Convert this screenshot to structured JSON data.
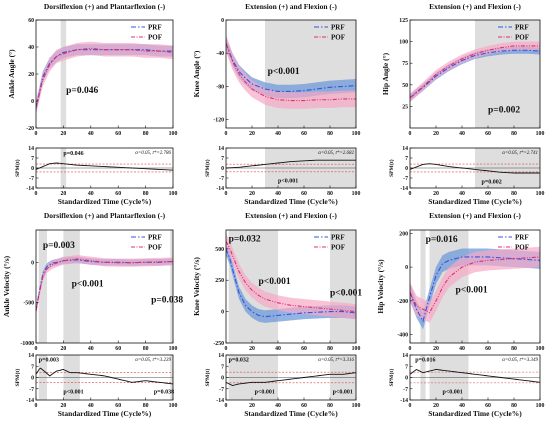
{
  "colors": {
    "prf": "#3355e0",
    "pof": "#e0306e",
    "prf_band": "#6f9ad8",
    "pof_band": "#f7a8c6",
    "highlight": "#dedede",
    "spm_threshold": "#d94848"
  },
  "chart_data": [
    {
      "id": "ankle_angle",
      "type": "line",
      "title": "Dorsiflexion (+) and Plantarflexion (-)",
      "xlabel": "",
      "ylabel": "Ankle Angle (°)",
      "xlim": [
        0,
        100
      ],
      "ylim": [
        -20,
        60
      ],
      "xticks": [
        0,
        20,
        40,
        60,
        80,
        100
      ],
      "yticks": [
        -20,
        0,
        20,
        40,
        60
      ],
      "legend": [
        "PRF",
        "POF"
      ],
      "legend_position": "top-right",
      "x": [
        0,
        5,
        10,
        15,
        20,
        30,
        40,
        50,
        60,
        70,
        80,
        90,
        100
      ],
      "series": [
        {
          "name": "PRF",
          "values": [
            -5,
            18,
            28,
            33,
            36,
            38,
            38,
            38,
            38,
            38,
            38,
            37,
            37
          ],
          "sd": 4
        },
        {
          "name": "POF",
          "values": [
            -5,
            16,
            27,
            33,
            35,
            38,
            39,
            38,
            38,
            38,
            37,
            37,
            36
          ],
          "sd": 5
        }
      ],
      "highlight_ranges": [
        [
          18,
          22
        ]
      ],
      "annotations": [
        {
          "text": "p=0.046",
          "x": 22,
          "y": 6
        }
      ]
    },
    {
      "id": "knee_angle",
      "type": "line",
      "title": "Extension (+) and Flexion (-)",
      "xlabel": "",
      "ylabel": "Knee Angle (°)",
      "xlim": [
        0,
        100
      ],
      "ylim": [
        -130,
        0
      ],
      "xticks": [
        0,
        20,
        40,
        60,
        80,
        100
      ],
      "yticks": [
        -120,
        -80,
        -40,
        0
      ],
      "legend": [
        "PRF",
        "POF"
      ],
      "legend_position": "top-right",
      "x": [
        0,
        5,
        10,
        15,
        20,
        30,
        40,
        50,
        60,
        70,
        80,
        90,
        100
      ],
      "series": [
        {
          "name": "PRF",
          "values": [
            -28,
            -48,
            -62,
            -70,
            -77,
            -83,
            -86,
            -86,
            -85,
            -83,
            -81,
            -80,
            -79
          ],
          "sd": 8
        },
        {
          "name": "POF",
          "values": [
            -28,
            -50,
            -65,
            -75,
            -83,
            -92,
            -96,
            -97,
            -97,
            -96,
            -96,
            -95,
            -95
          ],
          "sd": 10
        }
      ],
      "highlight_ranges": [
        [
          30,
          100
        ]
      ],
      "annotations": [
        {
          "text": "p<0.001",
          "x": 32,
          "y": -65
        }
      ]
    },
    {
      "id": "hip_angle",
      "type": "line",
      "title": "Extension (+) and Flexion (-)",
      "xlabel": "",
      "ylabel": "Hip Angle (°)",
      "xlim": [
        0,
        100
      ],
      "ylim": [
        0,
        125
      ],
      "xticks": [
        0,
        20,
        40,
        60,
        80,
        100
      ],
      "yticks": [
        25,
        50,
        75,
        100,
        125
      ],
      "legend": [
        "PRF",
        "POF"
      ],
      "legend_position": "top-right",
      "x": [
        0,
        10,
        20,
        30,
        40,
        50,
        60,
        70,
        80,
        90,
        100
      ],
      "series": [
        {
          "name": "PRF",
          "values": [
            35,
            47,
            60,
            70,
            78,
            84,
            87,
            89,
            90,
            90,
            89
          ],
          "sd": 4
        },
        {
          "name": "POF",
          "values": [
            35,
            48,
            62,
            72,
            80,
            86,
            90,
            93,
            95,
            95,
            95
          ],
          "sd": 5
        }
      ],
      "highlight_ranges": [
        [
          50,
          100
        ]
      ],
      "annotations": [
        {
          "text": "p=0.002",
          "x": 60,
          "y": 18
        }
      ]
    },
    {
      "id": "spm_ankle_angle",
      "type": "line",
      "xlabel": "Standardized Time (Cycle%)",
      "ylabel": "SPM{t}",
      "xlim": [
        0,
        100
      ],
      "ylim": [
        -14,
        14
      ],
      "xticks": [
        0,
        20,
        40,
        60,
        80,
        100
      ],
      "yticks": [
        -14,
        -7,
        0,
        7,
        14
      ],
      "threshold": 2.786,
      "alpha_text": "α=0.05, t*=2.786",
      "x": [
        0,
        5,
        10,
        15,
        20,
        30,
        40,
        50,
        60,
        70,
        80,
        90,
        100
      ],
      "series": [
        {
          "values": [
            -1,
            1,
            3,
            3.5,
            3,
            2,
            1.5,
            1,
            0.5,
            0,
            -0.5,
            -1,
            -1.5
          ]
        }
      ],
      "highlight_ranges": [
        [
          18,
          22
        ]
      ],
      "annotations": [
        {
          "text": "p=0.046",
          "x": 20,
          "y": 9
        }
      ]
    },
    {
      "id": "spm_knee_angle",
      "type": "line",
      "xlabel": "Standardized Time (Cycle%)",
      "ylabel": "SPM{t}",
      "xlim": [
        0,
        100
      ],
      "ylim": [
        -14,
        14
      ],
      "xticks": [
        0,
        20,
        40,
        60,
        80,
        100
      ],
      "yticks": [
        -14,
        -7,
        0,
        7,
        14
      ],
      "threshold": 2.682,
      "alpha_text": "α=0.05, t*=2.682",
      "x": [
        0,
        10,
        20,
        30,
        40,
        50,
        60,
        70,
        80,
        90,
        100
      ],
      "series": [
        {
          "values": [
            0,
            0.5,
            1.5,
            2.5,
            3.5,
            4.5,
            5,
            5.5,
            5.5,
            5.5,
            5.5
          ]
        }
      ],
      "highlight_ranges": [
        [
          30,
          100
        ]
      ],
      "annotations": [
        {
          "text": "p<0.001",
          "x": 40,
          "y": -10
        }
      ]
    },
    {
      "id": "spm_hip_angle",
      "type": "line",
      "xlabel": "Standardized Time (Cycle%)",
      "ylabel": "SPM{t}",
      "xlim": [
        0,
        100
      ],
      "ylim": [
        -14,
        14
      ],
      "xticks": [
        0,
        20,
        40,
        60,
        80,
        100
      ],
      "yticks": [
        -14,
        -7,
        0,
        7,
        14
      ],
      "threshold": 2.741,
      "alpha_text": "α=0.05, t*=2.741",
      "x": [
        0,
        10,
        15,
        20,
        30,
        40,
        50,
        60,
        70,
        80,
        90,
        100
      ],
      "series": [
        {
          "values": [
            -1,
            2.5,
            3,
            2.5,
            1,
            0,
            -1,
            -2,
            -3,
            -3.5,
            -3.5,
            -3.5
          ]
        }
      ],
      "highlight_ranges": [
        [
          50,
          100
        ]
      ],
      "annotations": [
        {
          "text": "p=0.002",
          "x": 55,
          "y": -11
        }
      ]
    },
    {
      "id": "ankle_velocity",
      "type": "line",
      "title": "Dorsiflexion (+) and Plantarflexion (-)",
      "xlabel": "",
      "ylabel": "Ankle Velocity (°/s)",
      "xlim": [
        0,
        100
      ],
      "ylim": [
        -1000,
        400
      ],
      "xticks": [
        0,
        20,
        40,
        60,
        80,
        100
      ],
      "yticks": [
        -1000,
        -500,
        0
      ],
      "legend": [
        "PRF",
        "POF"
      ],
      "legend_position": "top-right",
      "x": [
        0,
        2,
        5,
        8,
        12,
        15,
        20,
        30,
        40,
        50,
        60,
        70,
        80,
        90,
        100
      ],
      "series": [
        {
          "name": "PRF",
          "values": [
            -600,
            -400,
            -150,
            -50,
            -10,
            0,
            20,
            30,
            10,
            0,
            0,
            -5,
            0,
            0,
            10
          ],
          "sd": 40
        },
        {
          "name": "POF",
          "values": [
            -600,
            -420,
            -180,
            -80,
            -30,
            -10,
            20,
            40,
            20,
            0,
            -5,
            -5,
            0,
            5,
            10
          ],
          "sd": 50
        }
      ],
      "highlight_ranges": [
        [
          2,
          8
        ],
        [
          20,
          32
        ],
        [
          98,
          100
        ]
      ],
      "annotations": [
        {
          "text": "p=0.003",
          "x": 5,
          "y": 180
        },
        {
          "text": "p<0.001",
          "x": 26,
          "y": -300
        },
        {
          "text": "p=0.038",
          "x": 84,
          "y": -500
        }
      ]
    },
    {
      "id": "knee_velocity",
      "type": "line",
      "title": "Extension (+) and Flexion (-)",
      "xlabel": "",
      "ylabel": "Knee Velocity (°/s)",
      "xlim": [
        0,
        100
      ],
      "ylim": [
        -250,
        650
      ],
      "xticks": [
        0,
        20,
        40,
        60,
        80,
        100
      ],
      "yticks": [
        -250,
        0,
        250,
        500
      ],
      "legend": [
        "PRF",
        "POF"
      ],
      "legend_position": "top-right",
      "x": [
        0,
        3,
        6,
        10,
        15,
        20,
        25,
        30,
        40,
        50,
        60,
        70,
        80,
        90,
        100
      ],
      "series": [
        {
          "name": "PRF",
          "values": [
            500,
            420,
            300,
            150,
            50,
            0,
            -30,
            -40,
            -30,
            -20,
            -10,
            -5,
            0,
            0,
            -10
          ],
          "sd": 50
        },
        {
          "name": "POF",
          "values": [
            560,
            500,
            420,
            320,
            230,
            170,
            130,
            100,
            70,
            50,
            40,
            30,
            20,
            10,
            0
          ],
          "sd": 60
        }
      ],
      "highlight_ranges": [
        [
          2,
          40
        ],
        [
          80,
          100
        ]
      ],
      "annotations": [
        {
          "text": "p=0.032",
          "x": 2,
          "y": 560
        },
        {
          "text": "p<0.001",
          "x": 25,
          "y": 220
        },
        {
          "text": "p<0.001",
          "x": 80,
          "y": 130
        }
      ]
    },
    {
      "id": "hip_velocity",
      "type": "line",
      "title": "Extension (+) and Flexion (-)",
      "xlabel": "",
      "ylabel": "Hip Velocity (°/s)",
      "xlim": [
        0,
        100
      ],
      "ylim": [
        -450,
        220
      ],
      "xticks": [
        0,
        20,
        40,
        60,
        80,
        100
      ],
      "yticks": [
        -400,
        -200,
        0,
        200
      ],
      "legend": [
        "PRF",
        "POF"
      ],
      "legend_position": "top-right",
      "x": [
        0,
        5,
        10,
        15,
        20,
        25,
        30,
        40,
        50,
        60,
        70,
        80,
        90,
        100
      ],
      "series": [
        {
          "name": "PRF",
          "values": [
            -150,
            -250,
            -320,
            -180,
            -50,
            20,
            40,
            60,
            60,
            60,
            55,
            50,
            45,
            40
          ],
          "sd": 50
        },
        {
          "name": "POF",
          "values": [
            -150,
            -230,
            -250,
            -270,
            -200,
            -120,
            -60,
            0,
            30,
            40,
            45,
            50,
            55,
            60
          ],
          "sd": 60
        }
      ],
      "highlight_ranges": [
        [
          8,
          12
        ],
        [
          15,
          45
        ]
      ],
      "annotations": [
        {
          "text": "p=0.016",
          "x": 12,
          "y": 150
        },
        {
          "text": "p<0.001",
          "x": 35,
          "y": -150
        }
      ]
    },
    {
      "id": "spm_ankle_velocity",
      "type": "line",
      "xlabel": "Standardized Time (Cycle%)",
      "ylabel": "SPM{t}",
      "xlim": [
        0,
        100
      ],
      "ylim": [
        -14,
        14
      ],
      "xticks": [
        0,
        20,
        40,
        60,
        80,
        100
      ],
      "yticks": [
        -14,
        -7,
        0,
        7,
        14
      ],
      "threshold": 3.239,
      "alpha_text": "α=0.05, t*=3.239",
      "x": [
        0,
        3,
        6,
        10,
        15,
        20,
        25,
        30,
        40,
        50,
        60,
        70,
        80,
        90,
        100
      ],
      "series": [
        {
          "values": [
            2,
            6,
            4,
            1,
            4,
            5,
            3,
            3,
            2,
            1,
            -1,
            -3,
            -2,
            -3,
            -4
          ]
        }
      ],
      "highlight_ranges": [
        [
          2,
          8
        ],
        [
          20,
          32
        ],
        [
          98,
          100
        ]
      ],
      "annotations": [
        {
          "text": "p=0.003",
          "x": 2,
          "y": 10
        },
        {
          "text": "p<0.001",
          "x": 20,
          "y": -10
        },
        {
          "text": "p=0.038",
          "x": 86,
          "y": -10
        }
      ]
    },
    {
      "id": "spm_knee_velocity",
      "type": "line",
      "xlabel": "Standardized Time (Cycle%)",
      "ylabel": "SPM{t}",
      "xlim": [
        0,
        100
      ],
      "ylim": [
        -14,
        14
      ],
      "xticks": [
        0,
        20,
        40,
        60,
        80,
        100
      ],
      "yticks": [
        -14,
        -7,
        0,
        7,
        14
      ],
      "threshold": 3.316,
      "alpha_text": "α=0.05, t*=3.316",
      "x": [
        0,
        5,
        10,
        20,
        30,
        40,
        50,
        60,
        70,
        80,
        90,
        100
      ],
      "series": [
        {
          "values": [
            -3,
            -5,
            -4,
            -3,
            -3,
            -2,
            -1,
            0,
            1,
            2,
            2,
            3
          ]
        }
      ],
      "highlight_ranges": [
        [
          2,
          40
        ],
        [
          80,
          100
        ]
      ],
      "annotations": [
        {
          "text": "p=0.032",
          "x": 2,
          "y": 10
        },
        {
          "text": "p<0.001",
          "x": 22,
          "y": -10
        },
        {
          "text": "p<0.001",
          "x": 82,
          "y": -10
        }
      ]
    },
    {
      "id": "spm_hip_velocity",
      "type": "line",
      "xlabel": "Standardized Time (Cycle%)",
      "ylabel": "SPM{t}",
      "xlim": [
        0,
        100
      ],
      "ylim": [
        -14,
        14
      ],
      "xticks": [
        0,
        20,
        40,
        60,
        80,
        100
      ],
      "yticks": [
        -14,
        -7,
        0,
        7,
        14
      ],
      "threshold": 3.349,
      "alpha_text": "α=0.05, t*=3.349",
      "x": [
        0,
        5,
        10,
        15,
        20,
        30,
        40,
        50,
        60,
        70,
        80,
        90,
        100
      ],
      "series": [
        {
          "values": [
            2,
            5,
            3,
            4,
            5,
            4,
            3,
            2,
            1,
            0,
            -1,
            -2,
            -3
          ]
        }
      ],
      "highlight_ranges": [
        [
          8,
          12
        ],
        [
          15,
          45
        ]
      ],
      "annotations": [
        {
          "text": "p=0.016",
          "x": 4,
          "y": 10
        },
        {
          "text": "p<0.001",
          "x": 25,
          "y": -10
        }
      ]
    }
  ]
}
